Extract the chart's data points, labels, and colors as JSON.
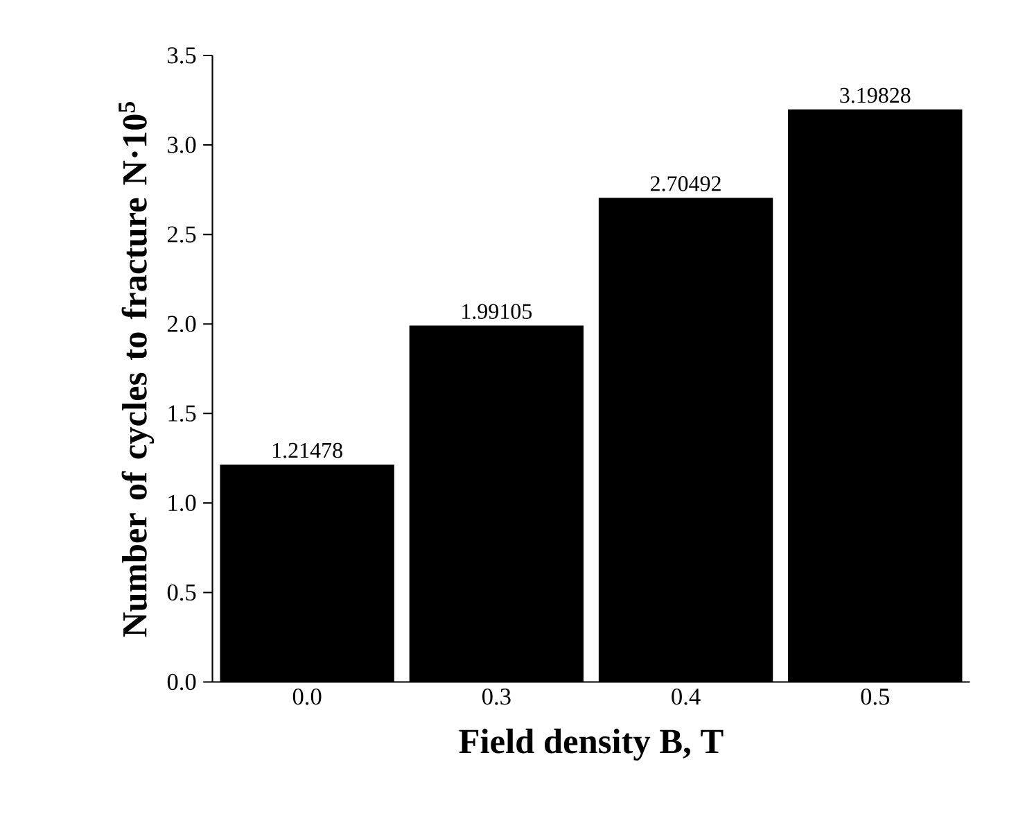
{
  "chart_data": {
    "type": "bar",
    "xlabel": "Field density B, T",
    "ylabel": "Number of cycles to fracture N·10$^{5}$",
    "categories": [
      "0.0",
      "0.3",
      "0.4",
      "0.5"
    ],
    "values": [
      1.21478,
      1.99105,
      2.70492,
      3.19828
    ],
    "color": "#000000",
    "data_labels": true,
    "ylim": [
      0,
      3.5
    ],
    "yticks": [
      {
        "value": 0,
        "label": "0.0"
      },
      0.5,
      {
        "value": 1,
        "label": "1.0"
      },
      1.5,
      {
        "value": 2,
        "label": "2.0"
      },
      2.5,
      {
        "value": 3,
        "label": "3.0"
      },
      3.5
    ]
  }
}
